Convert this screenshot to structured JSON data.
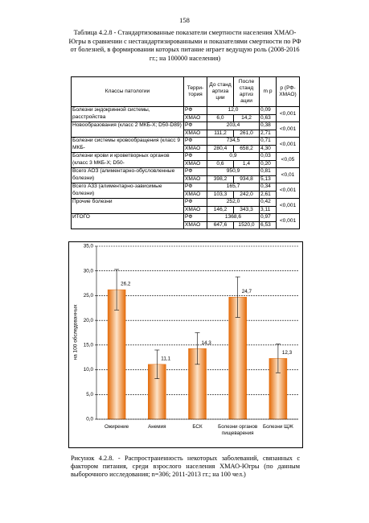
{
  "page_number": "158",
  "table_caption": "Таблица 4.2.8 - Стандартизованные показатели смертности населения ХМАО-Югры в сравнении с нестандартизированными и показателями смертности по РФ от болезней, в формировании которых питание играет ведущую роль (2008-2016 гг.; на 100000 населения)",
  "table": {
    "header": [
      "Классы патологии",
      "Терри-тория",
      "До станд артиза ции",
      "После станд артиз ации",
      "m р",
      "р (РФ-ХМАО)"
    ],
    "rows": [
      {
        "name": "Болезни эндокринной системы, расстройства",
        "rf": {
          "territory": "РФ",
          "value": "12,0",
          "m": "0,09"
        },
        "hmao": {
          "territory": "ХМАО",
          "before": "6,0",
          "after": "14,2",
          "m": "0,63"
        },
        "p": "<0,001"
      },
      {
        "name": "Новообразования (класс 2 МКБ-X; D50-D89)",
        "rf": {
          "territory": "РФ",
          "value": "203,4",
          "m": "0,38"
        },
        "hmao": {
          "territory": "ХМАО",
          "before": "111,2",
          "after": "261,0",
          "m": "2,71"
        },
        "p": "<0,001"
      },
      {
        "name": "Болезни системы кровообращения (класс 9 МКБ-",
        "rf": {
          "territory": "РФ",
          "value": "734,5",
          "m": "0,71"
        },
        "hmao": {
          "territory": "ХМАО",
          "before": "280,4",
          "after": "658,2",
          "m": "4,30"
        },
        "p": "<0,001"
      },
      {
        "name": "Болезни крови и кроветворных органов (класс 3 МКБ-X; D50-",
        "rf": {
          "territory": "РФ",
          "value": "0,9",
          "m": "0,03"
        },
        "hmao": {
          "territory": "ХМАО",
          "before": "0,6",
          "after": "1,4",
          "m": "0,20"
        },
        "p": "<0,05"
      },
      {
        "name": "Всего АОЗ (алиментарно-обусловленные болезни)",
        "rf": {
          "territory": "РФ",
          "value": "950,9",
          "m": "0,81"
        },
        "hmao": {
          "territory": "ХМАО",
          "before": "398,2",
          "after": "934,8",
          "m": "5,13"
        },
        "p": "<0,01"
      },
      {
        "name": "Всего А33 (алиментарно-зависимые болезни)",
        "rf": {
          "territory": "РФ",
          "value": "165,7",
          "m": "0,34"
        },
        "hmao": {
          "territory": "ХМАО",
          "before": "103,3",
          "after": "242,0",
          "m": "2,61"
        },
        "p": "<0,001"
      },
      {
        "name": "Прочие болезни",
        "rf": {
          "territory": "РФ",
          "value": "252,0",
          "m": "0,42"
        },
        "hmao": {
          "territory": "ХМАО",
          "before": "146,2",
          "after": "343,3",
          "m": "3,11"
        },
        "p": "<0,001"
      },
      {
        "name": "ИТОГО",
        "rf": {
          "territory": "РФ",
          "value": "1368,6",
          "m": "0,97"
        },
        "hmao": {
          "territory": "ХМАО",
          "before": "647,6",
          "after": "1520,0",
          "m": "6,53"
        },
        "p": "<0,001"
      }
    ]
  },
  "chart_data": {
    "type": "bar",
    "y_label": "на 100 обследованных",
    "categories": [
      "Ожирение",
      "Анемия",
      "БСК",
      "Болезни органов пищеварения",
      "Болезни ЩЖ"
    ],
    "values": [
      26.2,
      11.1,
      14.3,
      24.7,
      12.3
    ],
    "value_labels": [
      "26,2",
      "11,1",
      "14,3",
      "24,7",
      "12,3"
    ],
    "errors": [
      4.1,
      2.9,
      3.2,
      4.1,
      2.9
    ],
    "color": "#e46c0a",
    "grid": true,
    "ylim": [
      0,
      35
    ],
    "yticks": [
      {
        "value": 0,
        "label": "0,0"
      },
      {
        "value": 5,
        "label": "5,0"
      },
      {
        "value": 10,
        "label": "10,0"
      },
      {
        "value": 15,
        "label": "15,0"
      },
      {
        "value": 20,
        "label": "20,0"
      },
      {
        "value": 25,
        "label": "25,0"
      },
      {
        "value": 30,
        "label": "30,0"
      },
      {
        "value": 35,
        "label": "35,0"
      }
    ]
  },
  "figure_caption": "Рисунок 4.2.8. - Распространенность некоторых заболеваний, связанных с фактором питания, среди взрослого населения ХМАО-Югры (по данным выборочного исследования; n=306; 2011-2013 гг.; на 100 чел.)"
}
